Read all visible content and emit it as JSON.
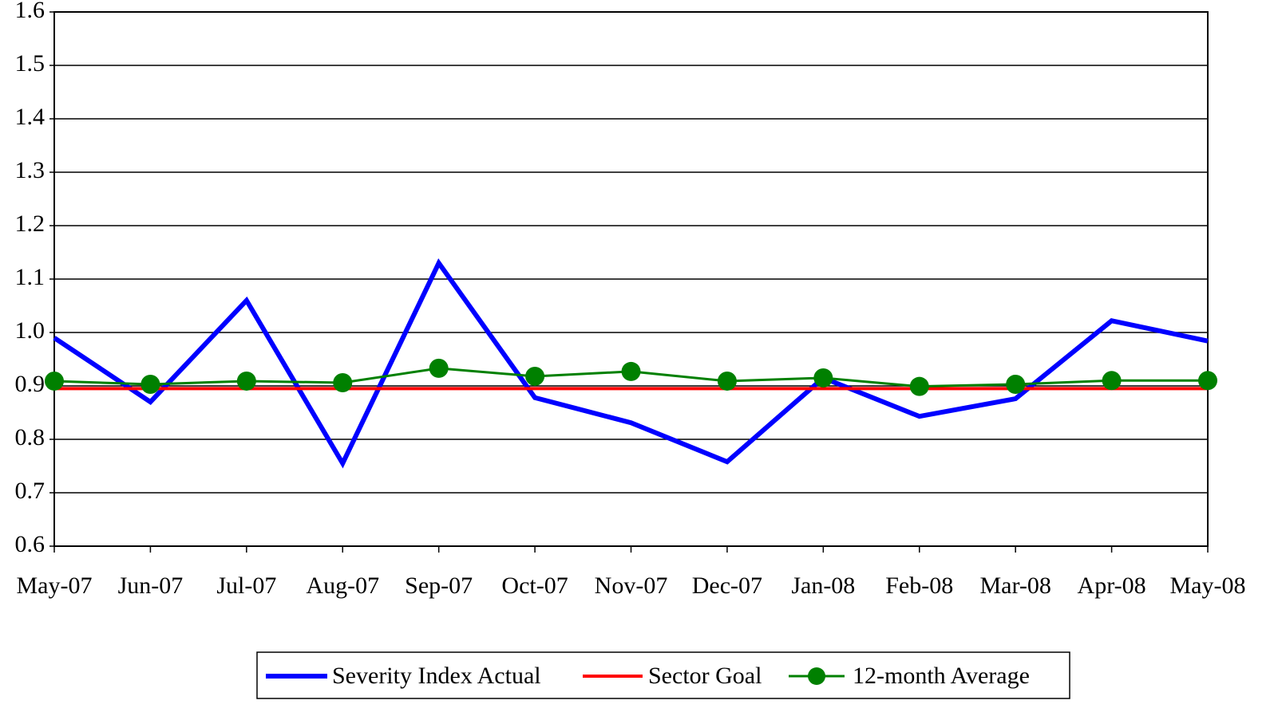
{
  "chart_data": {
    "type": "line",
    "categories": [
      "May-07",
      "Jun-07",
      "Jul-07",
      "Aug-07",
      "Sep-07",
      "Oct-07",
      "Nov-07",
      "Dec-07",
      "Jan-08",
      "Feb-08",
      "Mar-08",
      "Apr-08",
      "May-08"
    ],
    "series": [
      {
        "name": "Severity Index Actual",
        "color": "#0000ff",
        "values": [
          0.99,
          0.87,
          1.06,
          0.755,
          1.13,
          0.878,
          0.831,
          0.758,
          0.915,
          0.843,
          0.876,
          1.022,
          0.984
        ]
      },
      {
        "name": "Sector Goal",
        "color": "#ff0000",
        "values": [
          0.895,
          0.895,
          0.895,
          0.895,
          0.895,
          0.895,
          0.895,
          0.895,
          0.895,
          0.895,
          0.895,
          0.895,
          0.895
        ]
      },
      {
        "name": "12-month Average",
        "color": "#008000",
        "marker": "circle",
        "values": [
          0.909,
          0.903,
          0.909,
          0.906,
          0.933,
          0.918,
          0.927,
          0.909,
          0.915,
          0.899,
          0.903,
          0.91,
          0.91
        ]
      }
    ],
    "ylim": [
      0.6,
      1.6
    ],
    "yticks": [
      0.6,
      0.7,
      0.8,
      0.9,
      {
        "value": 1,
        "label": "1.0"
      },
      1.1,
      1.2,
      1.3,
      1.4,
      1.5,
      1.6
    ],
    "grid": true,
    "legend": "bottom"
  }
}
